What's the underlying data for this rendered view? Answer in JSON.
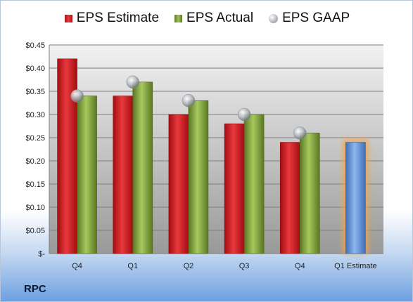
{
  "company": "RPC",
  "chart_data": {
    "type": "bar",
    "categories": [
      "Q4",
      "Q1",
      "Q2",
      "Q3",
      "Q4",
      "Q1 Estimate"
    ],
    "series": [
      {
        "name": "EPS Estimate",
        "values": [
          0.42,
          0.34,
          0.3,
          0.28,
          0.24,
          null
        ],
        "color": "#d42a2e"
      },
      {
        "name": "EPS Actual",
        "values": [
          0.34,
          0.37,
          0.33,
          0.3,
          0.26,
          null
        ],
        "color": "#8db24a"
      },
      {
        "name": "EPS GAAP",
        "type": "scatter",
        "values": [
          0.34,
          0.37,
          0.33,
          0.3,
          0.26,
          null
        ],
        "color": "#b8bcc2"
      }
    ],
    "future_estimate": {
      "category": "Q1 Estimate",
      "value": 0.24,
      "color": "#6f9ee0",
      "glow": "#f5a545"
    },
    "y_tick_labels": [
      "$-",
      "$0.05",
      "$0.10",
      "$0.15",
      "$0.20",
      "$0.25",
      "$0.30",
      "$0.35",
      "$0.40",
      "$0.45"
    ],
    "ylim": [
      0,
      0.45
    ],
    "grid": true,
    "legend_position": "top",
    "plot_background": [
      "#f2f2f2",
      "#999999"
    ]
  }
}
